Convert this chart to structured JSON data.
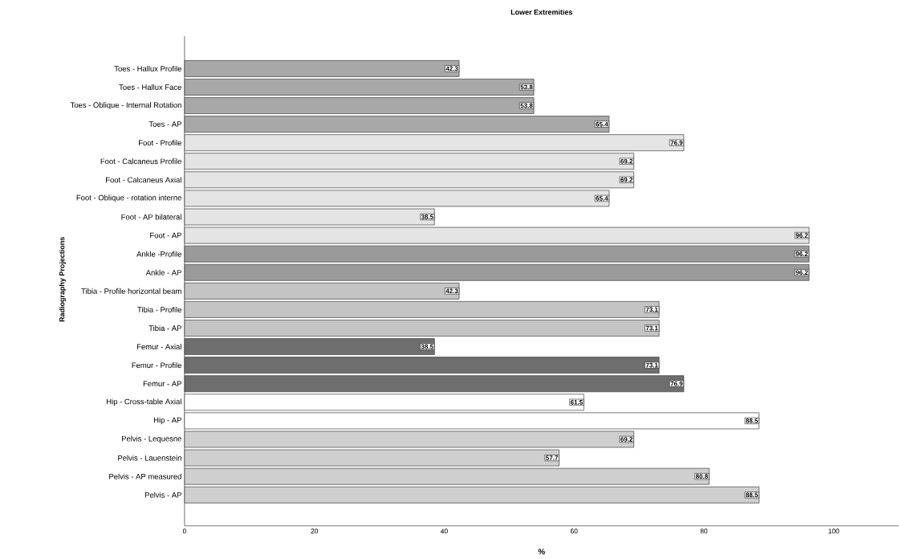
{
  "chart_data": {
    "type": "bar",
    "orientation": "horizontal",
    "title": "Lower Extremities",
    "xlabel": "%",
    "ylabel": "Radiography Projections",
    "categories": [
      "Toes - Hallux Profile",
      "Toes - Hallux Face",
      "Toes - Oblique - Internal Rotation",
      "Toes - AP",
      "Foot - Profile",
      "Foot - Calcaneus Profile",
      "Foot - Calcaneus Axial",
      "Foot - Oblique - rotation interne",
      "Foot - AP bilateral",
      "Foot - AP",
      "Ankle -Profile",
      "Ankle - AP",
      "Tibia - Profile horizontal beam",
      "Tibia - Profile",
      "Tibia - AP",
      "Femur -  Axial",
      "Femur - Profile",
      "Femur - AP",
      "Hip - Cross-table Axial",
      "Hip - AP",
      "Pelvis - Lequesne",
      "Pelvis - Lauenstein",
      "Pelvis - AP measured",
      "Pelvis - AP"
    ],
    "values": [
      42.3,
      53.8,
      53.8,
      65.4,
      76.9,
      69.2,
      69.2,
      65.4,
      38.5,
      96.2,
      96.2,
      96.2,
      42.3,
      73.1,
      73.1,
      38.5,
      73.1,
      76.9,
      61.5,
      88.5,
      69.2,
      57.7,
      80.8,
      88.5
    ],
    "colors": [
      "#a8a8a8",
      "#a8a8a8",
      "#a8a8a8",
      "#a8a8a8",
      "#e4e4e4",
      "#e4e4e4",
      "#e4e4e4",
      "#e4e4e4",
      "#e4e4e4",
      "#e4e4e4",
      "#9a9a9a",
      "#9a9a9a",
      "#c4c4c4",
      "#c4c4c4",
      "#c4c4c4",
      "#6e6e6e",
      "#6e6e6e",
      "#6e6e6e",
      "#ffffff",
      "#ffffff",
      "#cfcfcf",
      "#cfcfcf",
      "#cfcfcf",
      "#cfcfcf"
    ],
    "data_labels": true,
    "grid": false,
    "xlim": [
      0,
      110
    ],
    "xticks": [
      0,
      20,
      40,
      60,
      80,
      100
    ]
  }
}
